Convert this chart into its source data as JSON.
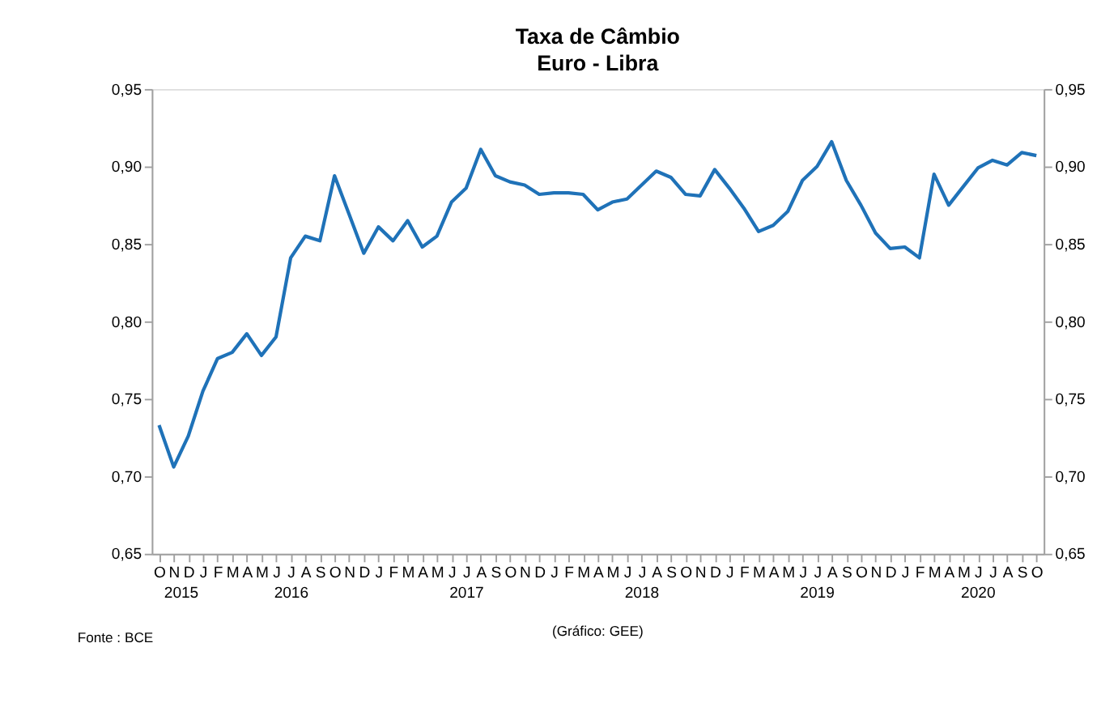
{
  "chart_data": {
    "type": "line",
    "title": "Taxa de Câmbio",
    "subtitle": "Euro - Libra",
    "categories": [
      "O",
      "N",
      "D",
      "J",
      "F",
      "M",
      "A",
      "M",
      "J",
      "J",
      "A",
      "S",
      "O",
      "N",
      "D",
      "J",
      "F",
      "M",
      "A",
      "M",
      "J",
      "J",
      "A",
      "S",
      "O",
      "N",
      "D",
      "J",
      "F",
      "M",
      "A",
      "M",
      "J",
      "J",
      "A",
      "S",
      "O",
      "N",
      "D",
      "J",
      "F",
      "M",
      "A",
      "M",
      "J",
      "J",
      "A",
      "S",
      "O",
      "N",
      "D",
      "J",
      "F",
      "M",
      "A",
      "M",
      "J",
      "J",
      "A",
      "S",
      "O"
    ],
    "x2lim": [
      "2015-09-16",
      "2020-10-16"
    ],
    "x2ticks": [
      {
        "value": "2015-11-15",
        "label": "2015"
      },
      {
        "value": "2016-07-01",
        "label": "2016"
      },
      {
        "value": "2017-07-01",
        "label": "2017"
      },
      {
        "value": "2018-07-01",
        "label": "2018"
      },
      {
        "value": "2019-07-01",
        "label": "2019"
      },
      {
        "value": "2020-05-31",
        "label": "2020"
      }
    ],
    "series": [
      {
        "color": "#1f72b8",
        "values": [
          0.733,
          0.706,
          0.726,
          0.755,
          0.776,
          0.78,
          0.792,
          0.778,
          0.79,
          0.841,
          0.855,
          0.852,
          0.894,
          0.869,
          0.844,
          0.861,
          0.852,
          0.865,
          0.848,
          0.855,
          0.877,
          0.886,
          0.911,
          0.894,
          0.89,
          0.888,
          0.882,
          0.883,
          0.883,
          0.882,
          0.872,
          0.877,
          0.879,
          0.888,
          0.897,
          0.893,
          0.882,
          0.881,
          0.898,
          0.886,
          0.873,
          0.858,
          0.862,
          0.871,
          0.891,
          0.9,
          0.916,
          0.891,
          0.875,
          0.857,
          0.847,
          0.848,
          0.841,
          0.895,
          0.875,
          0.887,
          0.899,
          0.904,
          0.901,
          0.909,
          0.907
        ]
      }
    ],
    "ylim": [
      0.65,
      0.95
    ],
    "yticks": [
      {
        "value": 0.65,
        "label": "0,65"
      },
      {
        "value": 0.7,
        "label": "0,70"
      },
      {
        "value": 0.75,
        "label": "0,75"
      },
      {
        "value": 0.8,
        "label": "0,80"
      },
      {
        "value": 0.85,
        "label": "0,85"
      },
      {
        "value": 0.9,
        "label": "0,90"
      },
      {
        "value": 0.95,
        "label": "0,95"
      }
    ],
    "y2lim": [
      0.65,
      0.95
    ],
    "y2ticks": [
      {
        "value": 0.65,
        "label": "0,65"
      },
      {
        "value": 0.7,
        "label": "0,70"
      },
      {
        "value": 0.75,
        "label": "0,75"
      },
      {
        "value": 0.8,
        "label": "0,80"
      },
      {
        "value": 0.85,
        "label": "0,85"
      },
      {
        "value": 0.9,
        "label": "0,90"
      },
      {
        "value": 0.95,
        "label": "0,95"
      }
    ],
    "annotations": [
      "Fonte : BCE",
      "(Gráfico: GEE)"
    ],
    "grid": false,
    "legend": false,
    "marker": "none",
    "line_style": "solid"
  }
}
